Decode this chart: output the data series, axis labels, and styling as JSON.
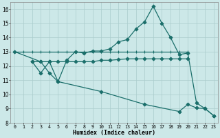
{
  "background_color": "#cce8e8",
  "grid_color": "#aacccc",
  "line_color": "#1a6e6a",
  "x_label": "Humidex (Indice chaleur)",
  "xlim": [
    -0.5,
    23.5
  ],
  "ylim": [
    8,
    16.5
  ],
  "yticks": [
    8,
    9,
    10,
    11,
    12,
    13,
    14,
    15,
    16
  ],
  "xticks": [
    0,
    1,
    2,
    3,
    4,
    5,
    6,
    7,
    8,
    9,
    10,
    11,
    12,
    13,
    14,
    15,
    16,
    17,
    18,
    19,
    20,
    21,
    22,
    23
  ],
  "series": [
    {
      "x": [
        0,
        1,
        2,
        3,
        4,
        5,
        6,
        7,
        8,
        9,
        10,
        11,
        12,
        13,
        14,
        15,
        16,
        17,
        18,
        19,
        20
      ],
      "y": [
        13,
        13,
        13,
        13,
        13,
        13,
        13,
        13,
        13,
        13,
        13,
        13,
        13,
        13,
        13,
        13,
        13,
        13,
        13,
        13,
        13
      ],
      "marker": "+",
      "markersize": 3,
      "lw": 0.9
    },
    {
      "x": [
        2,
        3,
        4,
        5,
        6,
        7,
        8,
        9,
        10,
        11,
        12,
        13,
        14,
        15,
        16,
        17,
        18,
        19,
        20,
        21,
        22,
        23
      ],
      "y": [
        12.3,
        11.5,
        12.3,
        10.9,
        12.4,
        13.0,
        12.9,
        13.05,
        13.05,
        13.2,
        13.7,
        13.85,
        14.6,
        15.1,
        16.2,
        15.0,
        14.0,
        12.8,
        12.9,
        9.4,
        9.0,
        8.5
      ],
      "marker": "D",
      "markersize": 2.5,
      "lw": 0.9
    },
    {
      "x": [
        2,
        3,
        4,
        5,
        6,
        7,
        8,
        9,
        10,
        11,
        12,
        13,
        14,
        15,
        16,
        17,
        18,
        19,
        20
      ],
      "y": [
        12.3,
        12.3,
        12.3,
        12.3,
        12.3,
        12.3,
        12.3,
        12.3,
        12.4,
        12.4,
        12.45,
        12.5,
        12.5,
        12.5,
        12.5,
        12.5,
        12.5,
        12.5,
        12.5
      ],
      "marker": "D",
      "markersize": 2.5,
      "lw": 0.9
    },
    {
      "x": [
        0,
        3,
        4,
        5,
        10,
        15,
        19,
        20,
        21,
        22,
        23
      ],
      "y": [
        13.0,
        12.3,
        11.5,
        10.9,
        10.2,
        9.3,
        8.8,
        9.3,
        9.05,
        9.0,
        8.5
      ],
      "marker": "D",
      "markersize": 2.5,
      "lw": 0.9
    }
  ]
}
